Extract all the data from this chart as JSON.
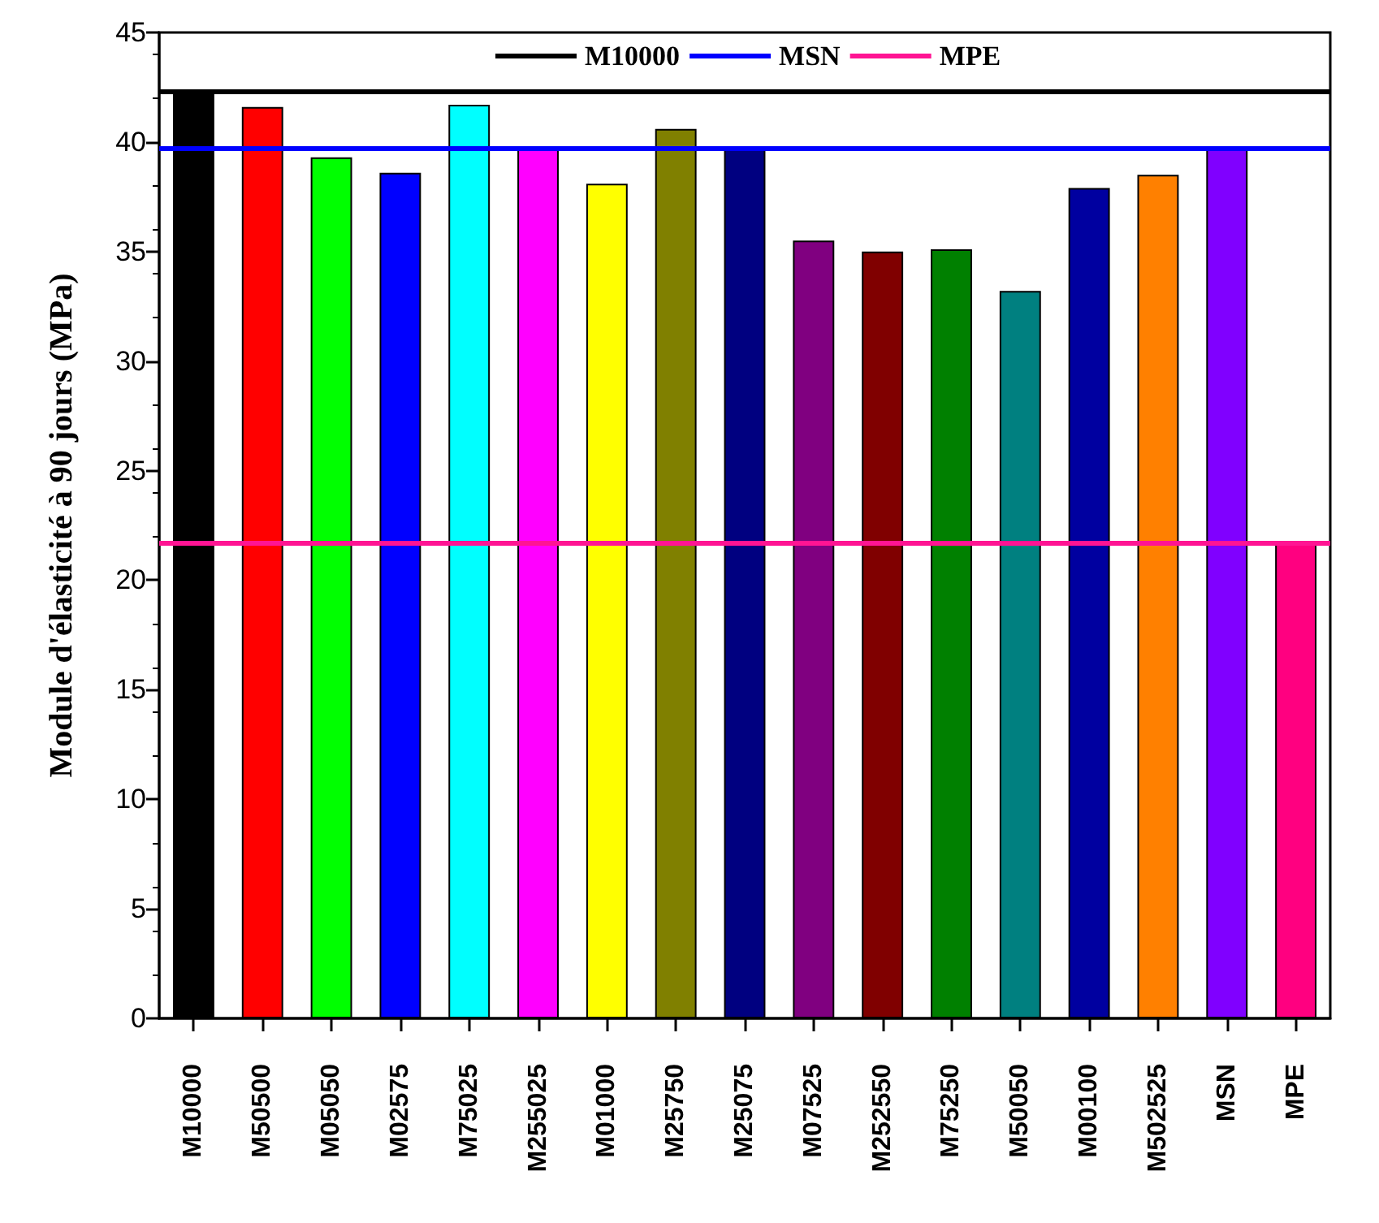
{
  "chart_data": {
    "type": "bar",
    "ylabel": "Module d'élasticité à 90 jours (MPa)",
    "categories": [
      "M10000",
      "M50500",
      "M05050",
      "M02575",
      "M75025",
      "M255025",
      "M01000",
      "M25750",
      "M25075",
      "M07525",
      "M252550",
      "M75250",
      "M50050",
      "M00100",
      "M502525",
      "MSN",
      "MPE"
    ],
    "values": [
      42.3,
      41.6,
      39.3,
      38.6,
      41.7,
      39.8,
      38.1,
      40.6,
      39.7,
      35.5,
      35.0,
      35.1,
      33.2,
      37.9,
      38.5,
      39.7,
      21.7
    ],
    "colors": [
      "#000000",
      "#ff0000",
      "#00ff00",
      "#0000ff",
      "#00ffff",
      "#ff00ff",
      "#ffff00",
      "#808000",
      "#000080",
      "#800080",
      "#800000",
      "#008000",
      "#008080",
      "#0000a0",
      "#ff8000",
      "#8000ff",
      "#ff0080"
    ],
    "ylim": [
      0,
      45
    ],
    "yticks": [
      0,
      5,
      10,
      15,
      20,
      25,
      30,
      35,
      40,
      45
    ],
    "ref_lines": [
      {
        "axis": "y",
        "value": 42.3,
        "label": "M10000",
        "color": "#000000"
      },
      {
        "axis": "y",
        "value": 39.7,
        "label": "MSN",
        "color": "#0000ff"
      },
      {
        "axis": "y",
        "value": 21.7,
        "label": "MPE",
        "color": "#ff1493"
      }
    ],
    "legend": "top",
    "grid": false
  }
}
